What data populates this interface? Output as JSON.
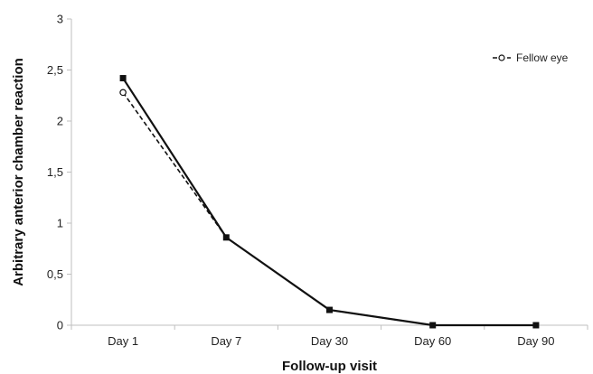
{
  "chart_data": {
    "type": "line",
    "categories": [
      "Day 1",
      "Day 7",
      "Day 30",
      "Day 60",
      "Day 90"
    ],
    "series": [
      {
        "name": "",
        "style": "solid",
        "marker": "filled-square",
        "values": [
          2.42,
          0.86,
          0.15,
          0.0,
          0.0
        ]
      },
      {
        "name": "Fellow eye",
        "style": "dashed",
        "marker": "open-circle",
        "values": [
          2.28,
          0.86,
          0.15,
          0.0,
          0.0
        ]
      }
    ],
    "xlabel": "Follow-up visit",
    "ylabel": "Arbitrary anterior chamber reaction",
    "ylim": [
      0,
      3
    ],
    "yticks": [
      "0",
      "0,5",
      "1",
      "1,5",
      "2",
      "2,5",
      "3"
    ],
    "grid": false,
    "legend": "top-right",
    "colors": {
      "line": "#111111",
      "axis": "#bfbfbf"
    }
  }
}
